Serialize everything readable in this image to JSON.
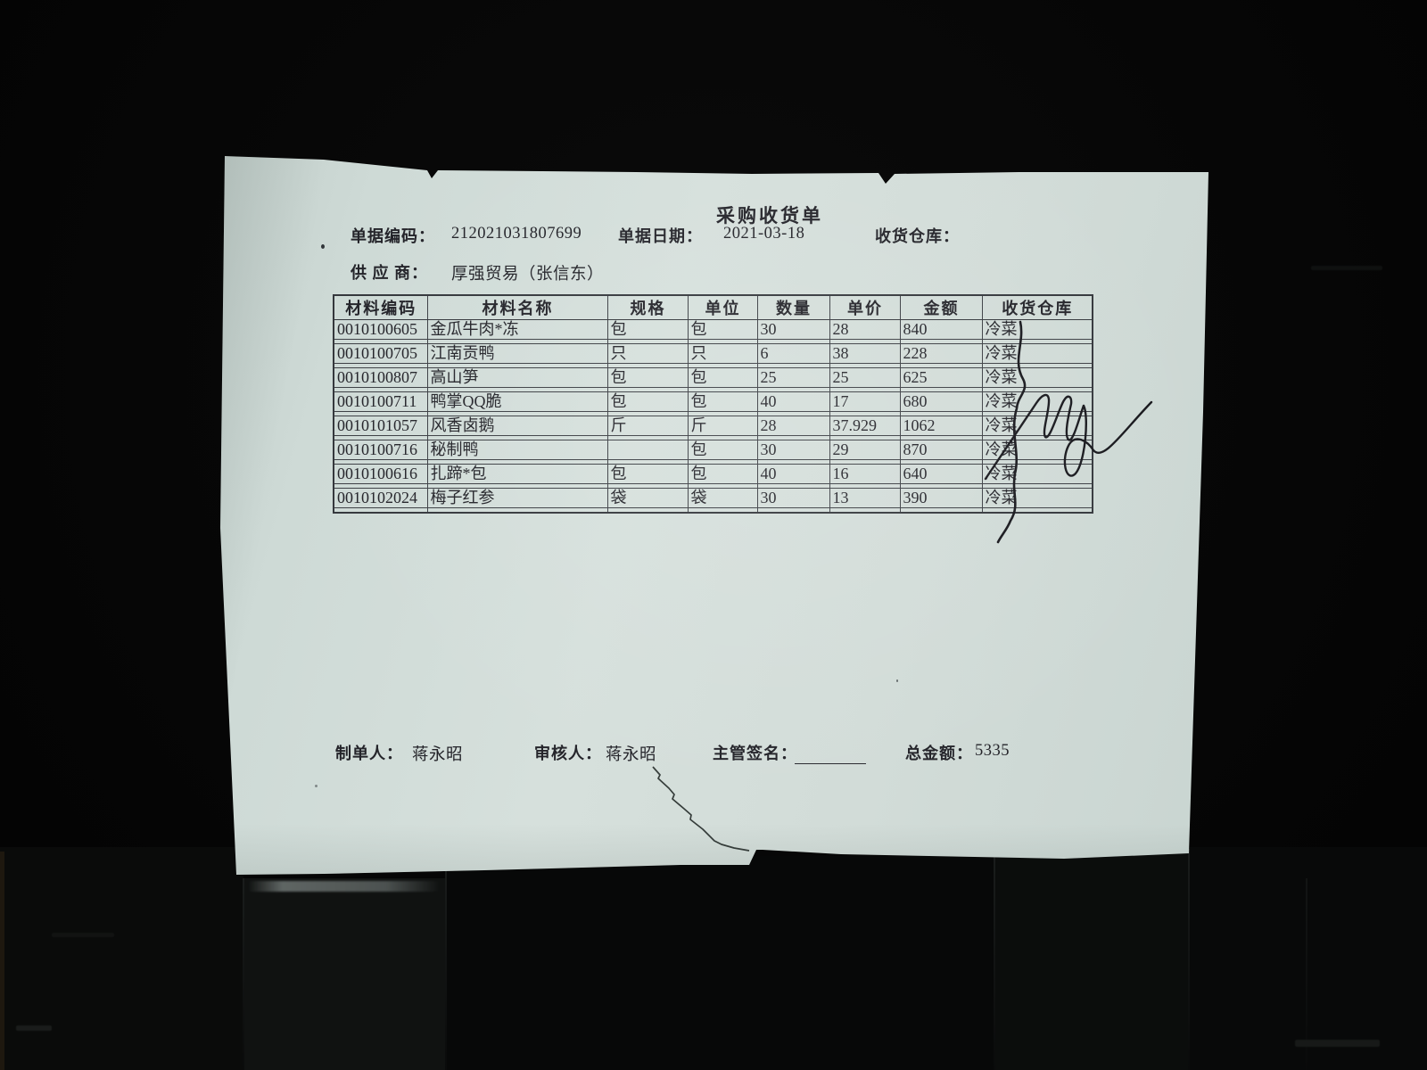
{
  "doc": {
    "title": "采购收货单",
    "fields": {
      "code_label": "单据编码：",
      "code_value": "212021031807699",
      "date_label": "单据日期：",
      "date_value": "2021-03-18",
      "warehouse_label": "收货仓库：",
      "warehouse_value": "",
      "supplier_label": "供 应 商：",
      "supplier_value": "厚强贸易（张信东）"
    },
    "table": {
      "headers": [
        "材料编码",
        "材料名称",
        "规格",
        "单位",
        "数量",
        "单价",
        "金额",
        "收货仓库"
      ],
      "rows": [
        [
          "0010100605",
          "金瓜牛肉*冻",
          "包",
          "包",
          "30",
          "28",
          "840",
          "冷菜"
        ],
        [
          "0010100705",
          "江南贡鸭",
          "只",
          "只",
          "6",
          "38",
          "228",
          "冷菜"
        ],
        [
          "0010100807",
          "高山笋",
          "包",
          "包",
          "25",
          "25",
          "625",
          "冷菜"
        ],
        [
          "0010100711",
          "鸭掌QQ脆",
          "包",
          "包",
          "40",
          "17",
          "680",
          "冷菜"
        ],
        [
          "0010101057",
          "风香卤鹅",
          "斤",
          "斤",
          "28",
          "37.929",
          "1062",
          "冷菜"
        ],
        [
          "0010100716",
          "秘制鸭",
          "",
          "包",
          "30",
          "29",
          "870",
          "冷菜"
        ],
        [
          "0010100616",
          "扎蹄*包",
          "包",
          "包",
          "40",
          "16",
          "640",
          "冷菜"
        ],
        [
          "0010102024",
          "梅子红参",
          "袋",
          "袋",
          "30",
          "13",
          "390",
          "冷菜"
        ]
      ]
    },
    "footer": {
      "maker_label": "制单人：",
      "maker_value": "蒋永昭",
      "auditor_label": "审核人：",
      "auditor_value": "蒋永昭",
      "sign_label": "主管签名：",
      "total_label": "总金额：",
      "total_value": "5335"
    }
  }
}
